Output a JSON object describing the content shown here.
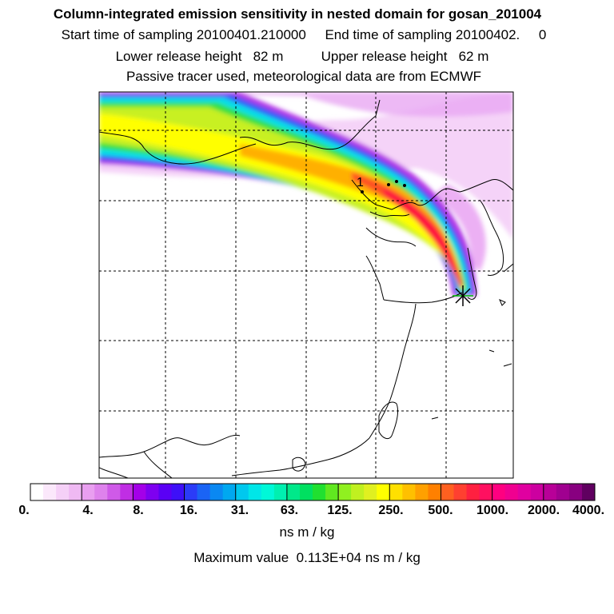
{
  "title": "Column-integrated emission sensitivity in nested domain for gosan_201004",
  "sampling_line": "Start time of sampling 20100401.210000     End time of sampling 20100402.     0",
  "release_line": "Lower release height   82 m          Upper release height   62 m",
  "tracer_line": "Passive tracer used, meteorological data are from ECMWF",
  "chart_data": {
    "type": "heatmap",
    "map_label": "1",
    "colorbar": {
      "ticks": [
        "0.",
        "4.",
        "8.",
        "16.",
        "31.",
        "63.",
        "125.",
        "250.",
        "500.",
        "1000.",
        "2000.",
        "4000."
      ],
      "colors": [
        "#ffffff",
        "#fbe8fb",
        "#f5d0f7",
        "#efb9f3",
        "#e99ff0",
        "#de82ec",
        "#cf5ae8",
        "#c02ee4",
        "#a400e8",
        "#7e00f0",
        "#5a00f5",
        "#3e10f8",
        "#2b3cf8",
        "#1a64f5",
        "#0a88f2",
        "#00a8f0",
        "#00c8ee",
        "#00e6e8",
        "#00f8d8",
        "#00f0b0",
        "#00e88a",
        "#00e060",
        "#20e030",
        "#60e820",
        "#90f020",
        "#c0f020",
        "#e0f020",
        "#ffff00",
        "#ffe000",
        "#ffc000",
        "#ffa000",
        "#ff8000",
        "#ff6020",
        "#ff4030",
        "#ff2040",
        "#ff1060",
        "#ff0080",
        "#f00090",
        "#e000a0",
        "#cc00a0",
        "#b80098",
        "#a00090",
        "#880080",
        "#600060"
      ],
      "unit": "ns m / kg"
    },
    "maximum_text": "Maximum value  0.113E+04 ns m / kg"
  }
}
